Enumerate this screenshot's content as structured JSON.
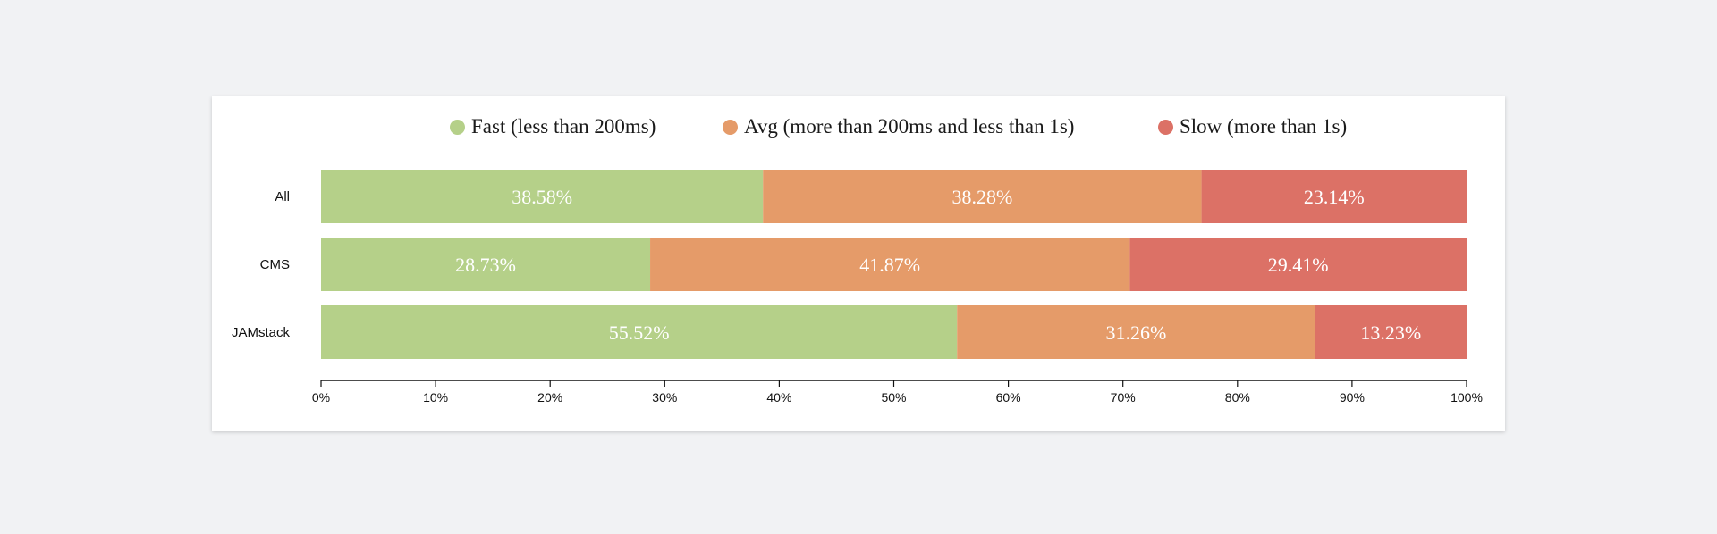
{
  "chart_data": {
    "type": "bar",
    "orientation": "horizontal",
    "stacked": true,
    "categories": [
      "All",
      "CMS",
      "JAMstack"
    ],
    "series": [
      {
        "name": "Fast (less than 200ms)",
        "color": "#b5d089",
        "values": [
          38.58,
          28.73,
          55.52
        ]
      },
      {
        "name": "Avg (more than 200ms and less than 1s)",
        "color": "#e59b69",
        "values": [
          38.28,
          41.87,
          31.26
        ]
      },
      {
        "name": "Slow (more than 1s)",
        "color": "#dc7166",
        "values": [
          23.14,
          29.41,
          13.23
        ]
      }
    ],
    "data_labels": [
      [
        "38.58%",
        "38.28%",
        "23.14%"
      ],
      [
        "28.73%",
        "41.87%",
        "29.41%"
      ],
      [
        "55.52%",
        "31.26%",
        "13.23%"
      ]
    ],
    "xlim": [
      0,
      100
    ],
    "x_ticks": [
      "0%",
      "10%",
      "20%",
      "30%",
      "40%",
      "50%",
      "60%",
      "70%",
      "80%",
      "90%",
      "100%"
    ],
    "legend_position": "top",
    "grid": false,
    "title": "",
    "xlabel": "",
    "ylabel": ""
  }
}
